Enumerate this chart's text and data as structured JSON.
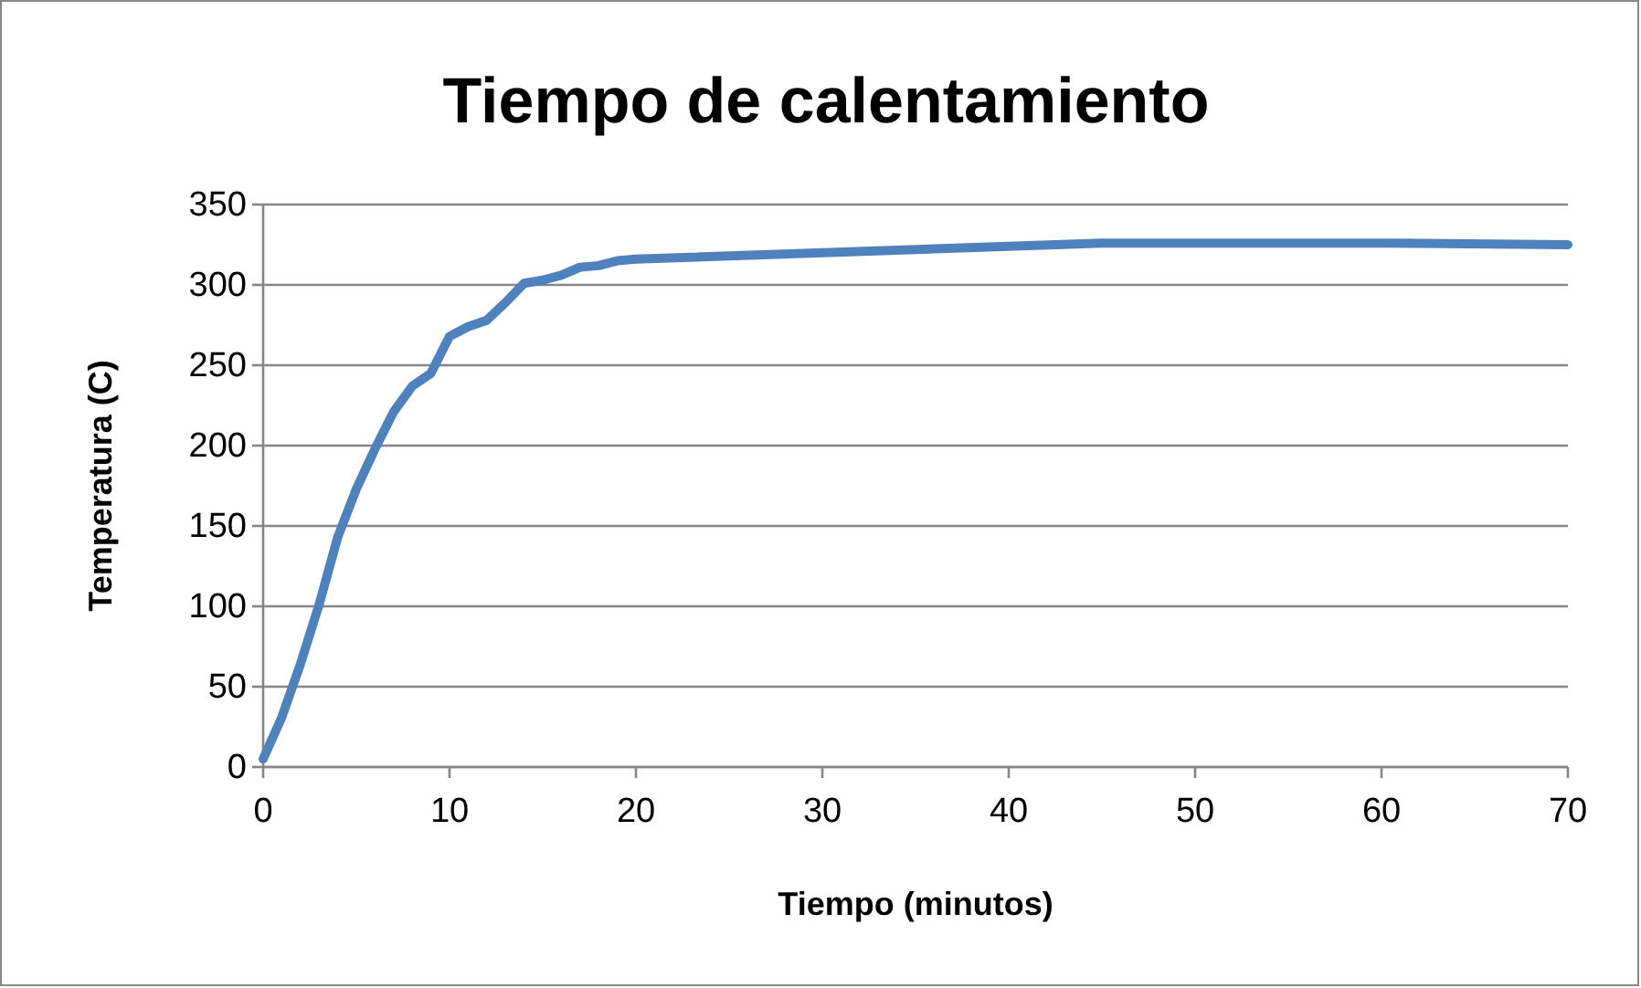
{
  "chart_data": {
    "type": "line",
    "title": "Tiempo de calentamiento",
    "xlabel": "Tiempo (minutos)",
    "ylabel": "Temperatura (C)",
    "x": [
      0,
      1,
      2,
      3,
      4,
      5,
      6,
      7,
      8,
      9,
      10,
      11,
      12,
      13,
      14,
      15,
      16,
      17,
      18,
      19,
      20,
      45,
      60,
      70
    ],
    "series": [
      {
        "color": "#4f81bd",
        "values": [
          5,
          31,
          64,
          101,
          143,
          173,
          198,
          221,
          237,
          245,
          268,
          274,
          278,
          289,
          301,
          303,
          306,
          311,
          312,
          315,
          316,
          326,
          326,
          325
        ]
      }
    ],
    "xlim": [
      0,
      70
    ],
    "xticks": [
      0,
      10,
      20,
      30,
      40,
      50,
      60,
      70
    ],
    "ylim": [
      0,
      350
    ],
    "yticks": [
      0,
      50,
      100,
      150,
      200,
      250,
      300,
      350
    ],
    "grid": "y",
    "marker": "none",
    "line_style": "solid"
  }
}
